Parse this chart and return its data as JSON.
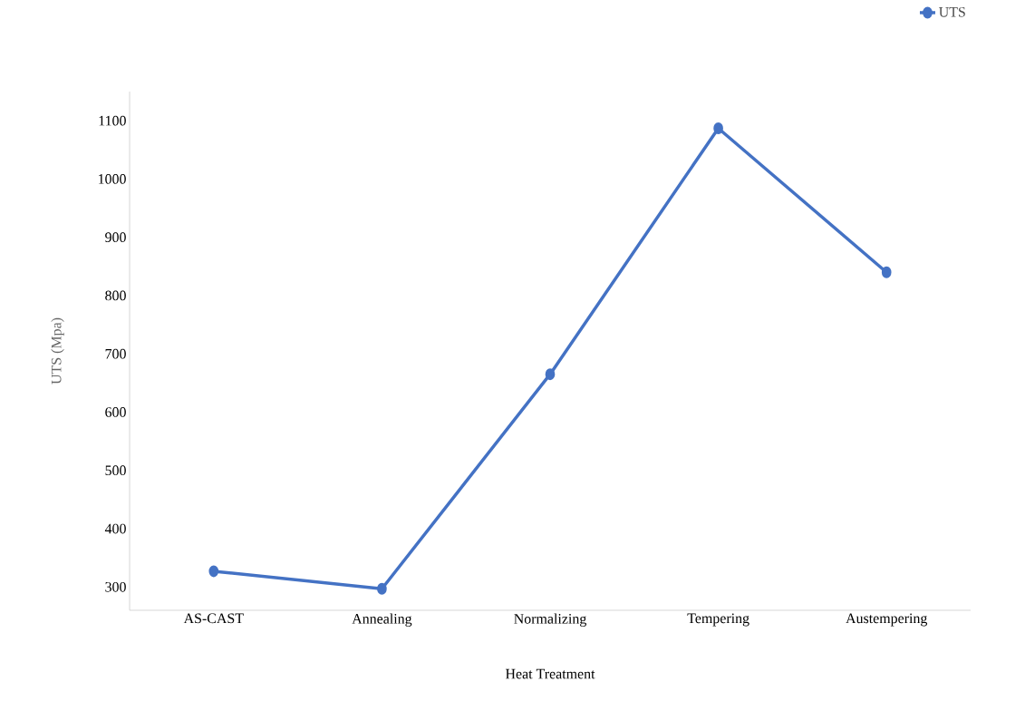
{
  "chart_data": {
    "type": "line",
    "xlabel": "Heat Treatment",
    "ylabel": "UTS (Mpa)",
    "categories": [
      "AS-CAST",
      "Annealing",
      "Normalizing",
      "Tempering",
      "Austempering"
    ],
    "series": [
      {
        "name": "UTS",
        "color": "#4472c4",
        "values": [
          327,
          297,
          665,
          1087,
          840
        ]
      }
    ],
    "ylim": [
      260,
      1150
    ],
    "yticks": [
      300,
      400,
      500,
      600,
      700,
      800,
      900,
      1000,
      1100
    ],
    "marker": "circle",
    "legend": "top right",
    "grid": false
  }
}
